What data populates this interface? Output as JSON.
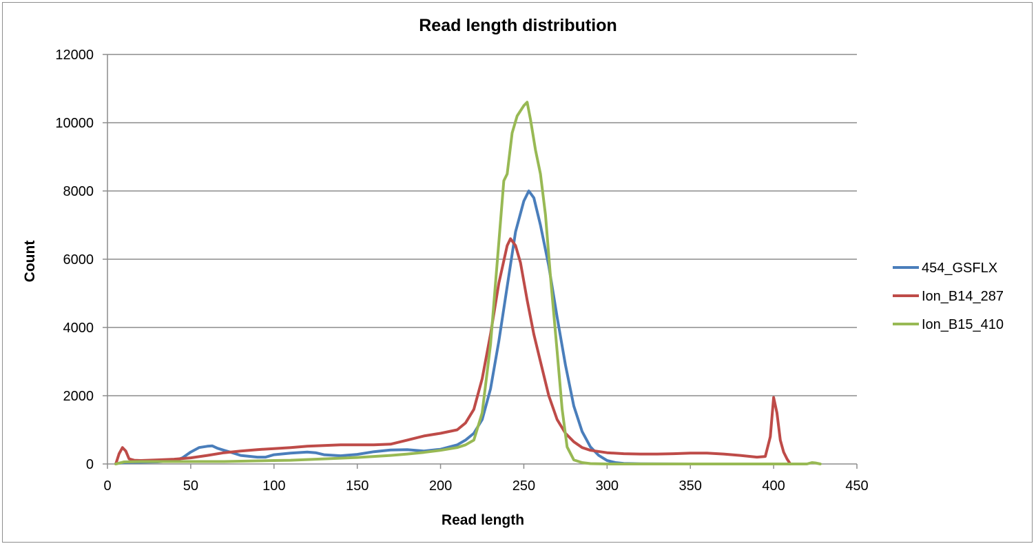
{
  "chart_data": {
    "type": "line",
    "title": "Read length distribution",
    "xlabel": "Read length",
    "ylabel": "Count",
    "xlim": [
      0,
      450
    ],
    "ylim": [
      0,
      12000
    ],
    "x_ticks": [
      "0",
      "50",
      "100",
      "150",
      "200",
      "250",
      "300",
      "350",
      "400",
      "450"
    ],
    "y_ticks": [
      "0",
      "2000",
      "4000",
      "6000",
      "8000",
      "10000",
      "12000"
    ],
    "grid": "horizontal",
    "legend_position": "right",
    "series": [
      {
        "name": "454_GSFLX",
        "color": "#4a7ebb",
        "points": [
          [
            5,
            10
          ],
          [
            10,
            40
          ],
          [
            20,
            50
          ],
          [
            30,
            60
          ],
          [
            40,
            90
          ],
          [
            45,
            180
          ],
          [
            50,
            350
          ],
          [
            55,
            480
          ],
          [
            60,
            520
          ],
          [
            63,
            530
          ],
          [
            66,
            460
          ],
          [
            70,
            400
          ],
          [
            75,
            330
          ],
          [
            80,
            250
          ],
          [
            90,
            200
          ],
          [
            95,
            200
          ],
          [
            100,
            270
          ],
          [
            110,
            320
          ],
          [
            120,
            350
          ],
          [
            125,
            330
          ],
          [
            130,
            270
          ],
          [
            140,
            240
          ],
          [
            150,
            280
          ],
          [
            160,
            360
          ],
          [
            170,
            410
          ],
          [
            180,
            420
          ],
          [
            190,
            380
          ],
          [
            200,
            430
          ],
          [
            210,
            560
          ],
          [
            215,
            700
          ],
          [
            220,
            900
          ],
          [
            225,
            1300
          ],
          [
            230,
            2200
          ],
          [
            235,
            3600
          ],
          [
            240,
            5200
          ],
          [
            245,
            6800
          ],
          [
            250,
            7700
          ],
          [
            253,
            8000
          ],
          [
            256,
            7800
          ],
          [
            260,
            7000
          ],
          [
            265,
            5800
          ],
          [
            270,
            4300
          ],
          [
            275,
            2900
          ],
          [
            280,
            1700
          ],
          [
            285,
            950
          ],
          [
            290,
            500
          ],
          [
            295,
            250
          ],
          [
            300,
            100
          ],
          [
            305,
            40
          ],
          [
            310,
            15
          ],
          [
            320,
            5
          ],
          [
            350,
            0
          ],
          [
            400,
            0
          ],
          [
            410,
            0
          ]
        ]
      },
      {
        "name": "Ion_B14_287",
        "color": "#be4b48",
        "points": [
          [
            5,
            0
          ],
          [
            7,
            300
          ],
          [
            9,
            480
          ],
          [
            11,
            380
          ],
          [
            13,
            150
          ],
          [
            16,
            110
          ],
          [
            20,
            100
          ],
          [
            30,
            120
          ],
          [
            40,
            140
          ],
          [
            50,
            180
          ],
          [
            60,
            250
          ],
          [
            70,
            330
          ],
          [
            80,
            380
          ],
          [
            90,
            420
          ],
          [
            100,
            450
          ],
          [
            110,
            480
          ],
          [
            120,
            520
          ],
          [
            130,
            540
          ],
          [
            140,
            560
          ],
          [
            150,
            560
          ],
          [
            160,
            560
          ],
          [
            170,
            580
          ],
          [
            180,
            700
          ],
          [
            190,
            820
          ],
          [
            200,
            900
          ],
          [
            210,
            1000
          ],
          [
            215,
            1200
          ],
          [
            220,
            1600
          ],
          [
            225,
            2500
          ],
          [
            230,
            3800
          ],
          [
            235,
            5300
          ],
          [
            240,
            6400
          ],
          [
            242,
            6600
          ],
          [
            245,
            6400
          ],
          [
            248,
            5900
          ],
          [
            252,
            4800
          ],
          [
            256,
            3800
          ],
          [
            260,
            3000
          ],
          [
            265,
            2000
          ],
          [
            270,
            1300
          ],
          [
            275,
            900
          ],
          [
            280,
            650
          ],
          [
            285,
            480
          ],
          [
            290,
            400
          ],
          [
            300,
            330
          ],
          [
            310,
            300
          ],
          [
            320,
            290
          ],
          [
            330,
            290
          ],
          [
            340,
            300
          ],
          [
            350,
            320
          ],
          [
            360,
            320
          ],
          [
            370,
            290
          ],
          [
            380,
            250
          ],
          [
            390,
            200
          ],
          [
            395,
            220
          ],
          [
            398,
            800
          ],
          [
            400,
            1950
          ],
          [
            402,
            1500
          ],
          [
            404,
            700
          ],
          [
            406,
            350
          ],
          [
            408,
            150
          ],
          [
            410,
            0
          ]
        ]
      },
      {
        "name": "Ion_B15_410",
        "color": "#98b954",
        "points": [
          [
            5,
            0
          ],
          [
            10,
            60
          ],
          [
            20,
            70
          ],
          [
            30,
            70
          ],
          [
            40,
            70
          ],
          [
            50,
            70
          ],
          [
            60,
            70
          ],
          [
            70,
            70
          ],
          [
            80,
            80
          ],
          [
            90,
            90
          ],
          [
            100,
            100
          ],
          [
            110,
            110
          ],
          [
            120,
            130
          ],
          [
            130,
            150
          ],
          [
            140,
            170
          ],
          [
            150,
            190
          ],
          [
            160,
            220
          ],
          [
            170,
            250
          ],
          [
            180,
            290
          ],
          [
            190,
            340
          ],
          [
            200,
            400
          ],
          [
            210,
            480
          ],
          [
            215,
            560
          ],
          [
            220,
            700
          ],
          [
            225,
            1500
          ],
          [
            230,
            3500
          ],
          [
            235,
            6500
          ],
          [
            238,
            8300
          ],
          [
            240,
            8500
          ],
          [
            243,
            9700
          ],
          [
            246,
            10200
          ],
          [
            250,
            10500
          ],
          [
            252,
            10600
          ],
          [
            254,
            10100
          ],
          [
            257,
            9200
          ],
          [
            260,
            8500
          ],
          [
            263,
            7300
          ],
          [
            266,
            5500
          ],
          [
            270,
            3300
          ],
          [
            273,
            1600
          ],
          [
            276,
            500
          ],
          [
            280,
            120
          ],
          [
            285,
            40
          ],
          [
            290,
            10
          ],
          [
            300,
            0
          ],
          [
            350,
            0
          ],
          [
            400,
            0
          ],
          [
            420,
            0
          ],
          [
            423,
            40
          ],
          [
            425,
            30
          ],
          [
            428,
            0
          ]
        ]
      }
    ]
  }
}
